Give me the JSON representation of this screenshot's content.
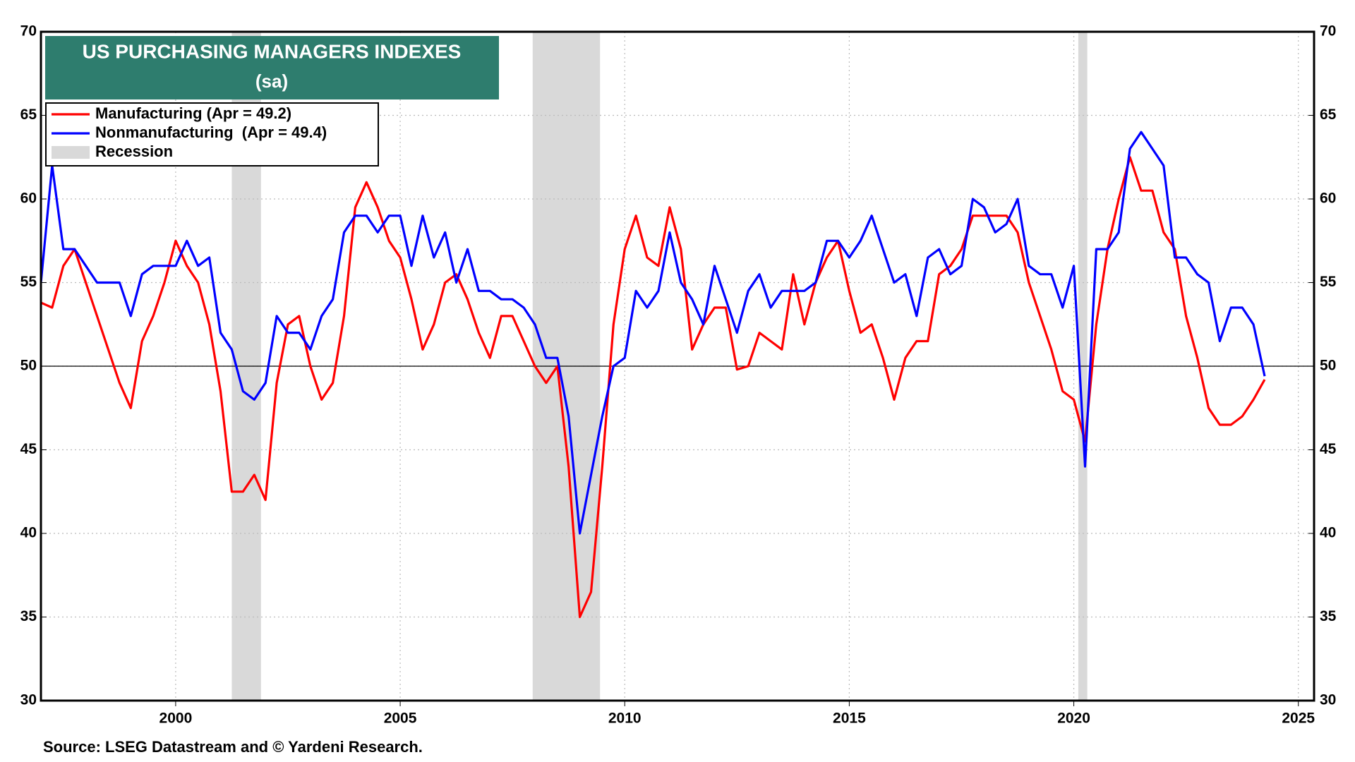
{
  "chart_data": {
    "type": "line",
    "title": "US PURCHASING MANAGERS INDEXES",
    "subtitle": "(sa)",
    "source": "Source: LSEG Datastream and © Yardeni Research.",
    "recession_label": "Recession",
    "recession_color": "#d9d9d9",
    "recessions": [
      [
        2001.25,
        2001.9
      ],
      [
        2007.95,
        2009.45
      ],
      [
        2020.1,
        2020.3
      ]
    ],
    "reference_line": 50,
    "xlim": [
      1997,
      2025.35
    ],
    "ylim": [
      30,
      70
    ],
    "xticks": [
      2000,
      2005,
      2010,
      2015,
      2020,
      2025
    ],
    "yticks": [
      30,
      35,
      40,
      45,
      50,
      55,
      60,
      65,
      70
    ],
    "grid": true,
    "legend": "upper left",
    "x": [
      1997,
      1997.25,
      1997.5,
      1997.75,
      1998,
      1998.25,
      1998.5,
      1998.75,
      1999,
      1999.25,
      1999.5,
      1999.75,
      2000,
      2000.25,
      2000.5,
      2000.75,
      2001,
      2001.25,
      2001.5,
      2001.75,
      2002,
      2002.25,
      2002.5,
      2002.75,
      2003,
      2003.25,
      2003.5,
      2003.75,
      2004,
      2004.25,
      2004.5,
      2004.75,
      2005,
      2005.25,
      2005.5,
      2005.75,
      2006,
      2006.25,
      2006.5,
      2006.75,
      2007,
      2007.25,
      2007.5,
      2007.75,
      2008,
      2008.25,
      2008.5,
      2008.75,
      2009,
      2009.25,
      2009.5,
      2009.75,
      2010,
      2010.25,
      2010.5,
      2010.75,
      2011,
      2011.25,
      2011.5,
      2011.75,
      2012,
      2012.25,
      2012.5,
      2012.75,
      2013,
      2013.25,
      2013.5,
      2013.75,
      2014,
      2014.25,
      2014.5,
      2014.75,
      2015,
      2015.25,
      2015.5,
      2015.75,
      2016,
      2016.25,
      2016.5,
      2016.75,
      2017,
      2017.25,
      2017.5,
      2017.75,
      2018,
      2018.25,
      2018.5,
      2018.75,
      2019,
      2019.25,
      2019.5,
      2019.75,
      2020,
      2020.25,
      2020.5,
      2020.75,
      2021,
      2021.25,
      2021.5,
      2021.75,
      2022,
      2022.25,
      2022.5,
      2022.75,
      2023,
      2023.25,
      2023.5,
      2023.75,
      2024,
      2024.25
    ],
    "series": [
      {
        "name": "Manufacturing (Apr = 49.2)",
        "color": "#ff0000",
        "values": [
          53.8,
          53.5,
          56,
          57,
          55,
          53,
          51,
          49,
          47.5,
          51.5,
          53,
          55,
          57.5,
          56,
          55,
          52.5,
          48.5,
          42.5,
          42.5,
          43.5,
          42,
          49,
          52.5,
          53,
          50,
          48,
          49,
          53,
          59.5,
          61,
          59.5,
          57.5,
          56.5,
          54,
          51,
          52.5,
          55,
          55.5,
          54,
          52,
          50.5,
          53,
          53,
          51.5,
          50,
          49,
          50,
          44,
          35,
          36.5,
          44,
          52.5,
          57,
          59,
          56.5,
          56,
          59.5,
          57,
          51,
          52.5,
          53.5,
          53.5,
          49.8,
          50,
          52,
          51.5,
          51,
          55.5,
          52.5,
          55,
          56.5,
          57.5,
          54.5,
          52,
          52.5,
          50.5,
          48,
          50.5,
          51.5,
          51.5,
          55.5,
          56,
          57,
          59,
          59,
          59,
          59,
          58,
          55,
          53,
          51,
          48.5,
          48,
          45.5,
          52.5,
          57,
          60,
          62.5,
          60.5,
          60.5,
          58,
          57,
          53,
          50.5,
          47.5,
          46.5,
          46.5,
          47,
          48,
          49.2
        ]
      },
      {
        "name": "Nonmanufacturing  (Apr = 49.4)",
        "color": "#0000ff",
        "values": [
          55,
          62,
          57,
          57,
          56,
          55,
          55,
          55,
          53,
          55.5,
          56,
          56,
          56,
          57.5,
          56,
          56.5,
          52,
          51,
          48.5,
          48,
          49,
          53,
          52,
          52,
          51,
          53,
          54,
          58,
          59,
          59,
          58,
          59,
          59,
          56,
          59,
          56.5,
          58,
          55,
          57,
          54.5,
          54.5,
          54,
          54,
          53.5,
          52.5,
          50.5,
          50.5,
          47,
          40,
          43.5,
          47,
          50,
          50.5,
          54.5,
          53.5,
          54.5,
          58,
          55,
          54,
          52.5,
          56,
          54,
          52,
          54.5,
          55.5,
          53.5,
          54.5,
          54.5,
          54.5,
          55,
          57.5,
          57.5,
          56.5,
          57.5,
          59,
          57,
          55,
          55.5,
          53,
          56.5,
          57,
          55.5,
          56,
          60,
          59.5,
          58,
          58.5,
          60,
          56,
          55.5,
          55.5,
          53.5,
          56,
          44,
          57,
          57,
          58,
          63,
          64,
          63,
          62,
          56.5,
          56.5,
          55.5,
          55,
          51.5,
          53.5,
          53.5,
          52.5,
          49.4
        ]
      }
    ]
  }
}
